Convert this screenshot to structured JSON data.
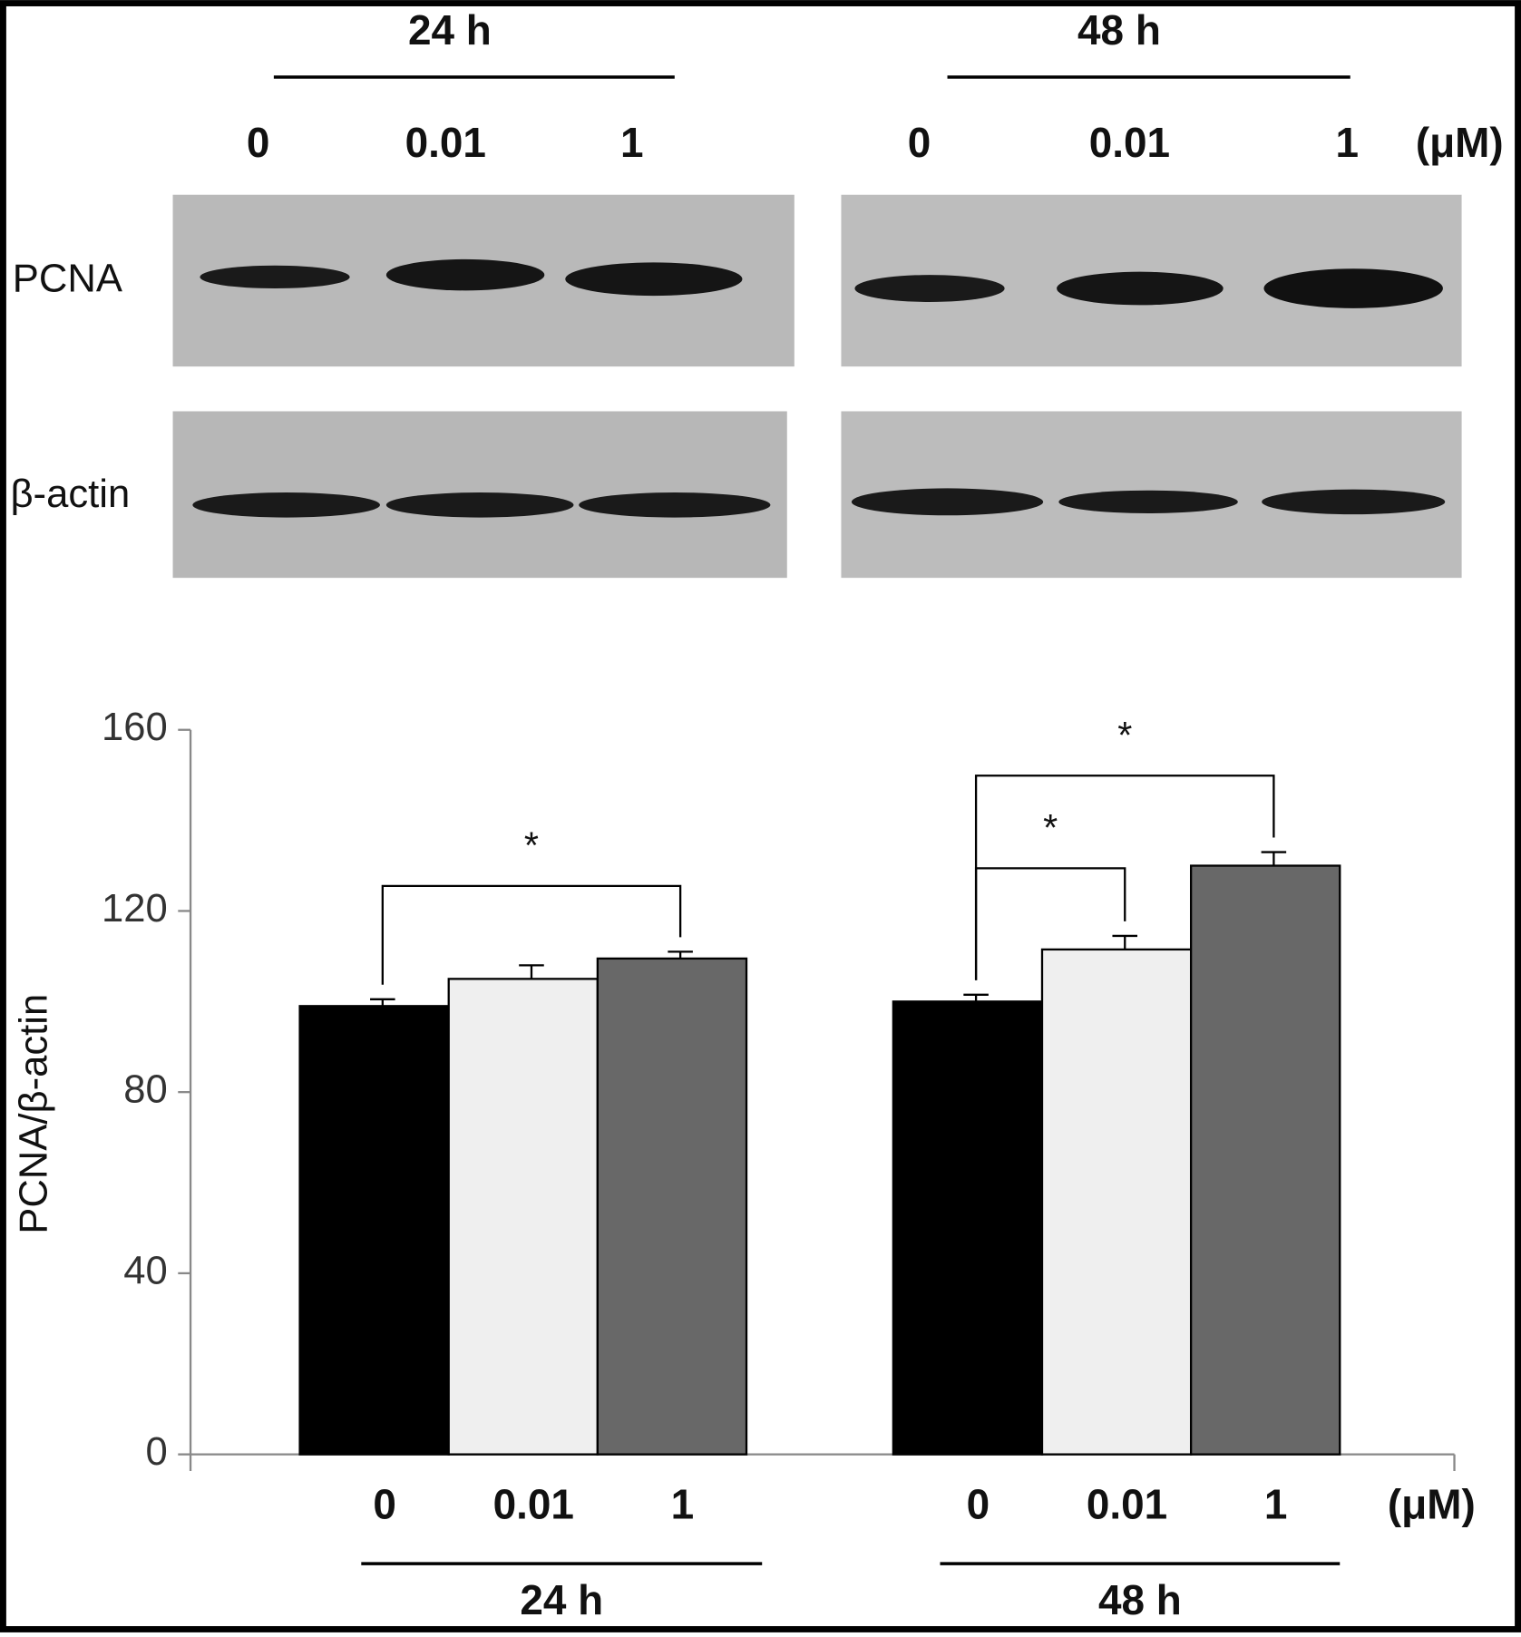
{
  "blot": {
    "time_labels": [
      "24 h",
      "48 h"
    ],
    "dose_labels": [
      "0",
      "0.01",
      "1"
    ],
    "unit": "(μM)",
    "rows": [
      "PCNA",
      "β-actin"
    ]
  },
  "chart_data": {
    "type": "bar",
    "y_label": "PCNA/β-actin",
    "categories": [
      "24 h",
      "48 h"
    ],
    "unit": "(μM)",
    "series": [
      {
        "name": "0",
        "color": "#000000",
        "values": [
          99,
          100
        ],
        "errors": [
          1.5,
          1.5
        ]
      },
      {
        "name": "0.01",
        "color": "#efefef",
        "values": [
          105,
          111.5
        ],
        "errors": [
          3,
          3
        ]
      },
      {
        "name": "1",
        "color": "#686868",
        "values": [
          109.5,
          130
        ],
        "errors": [
          1.5,
          3
        ]
      }
    ],
    "ylim": [
      0,
      160
    ],
    "yticks": [
      0,
      40,
      80,
      120,
      160
    ],
    "annotations": [
      "*",
      "*",
      "*"
    ]
  }
}
